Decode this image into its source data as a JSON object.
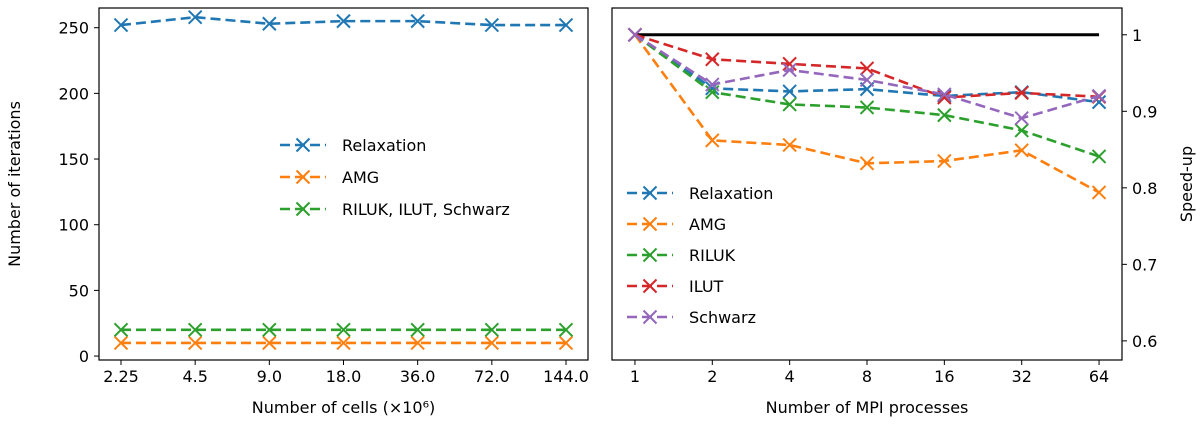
{
  "colors": {
    "blue": "#1f77b4",
    "orange": "#ff7f0e",
    "green": "#2ca02c",
    "red": "#d62728",
    "purple": "#9467bd",
    "black": "#000000"
  },
  "chart_data": [
    {
      "type": "line",
      "title": "",
      "xlabel": "Number of cells (×10⁶)",
      "ylabel": "Number of iterations",
      "categories": [
        "2.25",
        "4.5",
        "9.0",
        "18.0",
        "36.0",
        "72.0",
        "144.0"
      ],
      "ylim": [
        -3,
        265
      ],
      "yticks": [
        0,
        50,
        100,
        150,
        200,
        250
      ],
      "grid": false,
      "legend": "center-right",
      "series": [
        {
          "name": "Relaxation",
          "color": "#1f77b4",
          "values": [
            252,
            258,
            253,
            255,
            255,
            252,
            252
          ]
        },
        {
          "name": "AMG",
          "color": "#ff7f0e",
          "values": [
            10,
            10,
            10,
            10,
            10,
            10,
            10
          ]
        },
        {
          "name": "RILUK, ILUT, Schwarz",
          "color": "#2ca02c",
          "values": [
            20,
            20,
            20,
            20,
            20,
            20,
            20
          ]
        }
      ]
    },
    {
      "type": "line",
      "title": "",
      "xlabel": "Number of MPI processes",
      "ylabel": "Speed-up",
      "categories": [
        "1",
        "2",
        "4",
        "8",
        "16",
        "32",
        "64"
      ],
      "ylim": [
        0.575,
        1.035
      ],
      "yticks": [
        0.6,
        0.7,
        0.8,
        0.9,
        1.0
      ],
      "yaxis_side": "right",
      "grid": false,
      "legend": "lower-left",
      "reference": {
        "values": [
          1.0,
          1.0,
          1.0,
          1.0,
          1.0,
          1.0,
          1.0
        ],
        "color": "#000000"
      },
      "series": [
        {
          "name": "Relaxation",
          "color": "#1f77b4",
          "values": [
            1.0,
            0.93,
            0.926,
            0.929,
            0.92,
            0.925,
            0.912
          ]
        },
        {
          "name": "AMG",
          "color": "#ff7f0e",
          "values": [
            1.0,
            0.862,
            0.856,
            0.832,
            0.835,
            0.849,
            0.794
          ]
        },
        {
          "name": "RILUK",
          "color": "#2ca02c",
          "values": [
            1.0,
            0.925,
            0.909,
            0.905,
            0.895,
            0.875,
            0.841
          ]
        },
        {
          "name": "ILUT",
          "color": "#d62728",
          "values": [
            1.0,
            0.968,
            0.962,
            0.956,
            0.918,
            0.924,
            0.919
          ]
        },
        {
          "name": "Schwarz",
          "color": "#9467bd",
          "values": [
            1.0,
            0.935,
            0.954,
            0.941,
            0.922,
            0.891,
            0.92
          ]
        }
      ]
    }
  ]
}
